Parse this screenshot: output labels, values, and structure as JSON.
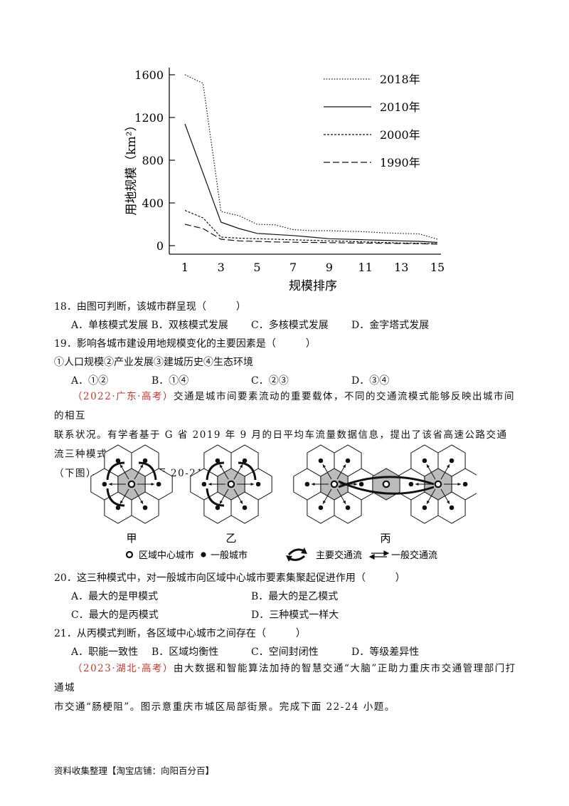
{
  "chart_data": {
    "type": "line",
    "ylabel": "用地规模（km²）",
    "xlabel": "规模排序",
    "x_ticks": [
      1,
      3,
      5,
      7,
      9,
      11,
      13,
      15
    ],
    "y_ticks": [
      0,
      400,
      800,
      1200,
      1600
    ],
    "ylim": [
      0,
      1600
    ],
    "xlim": [
      1,
      15
    ],
    "legend_position": "top-right",
    "series": [
      {
        "name": "2018年",
        "style": "dotted",
        "x": [
          1,
          2,
          3,
          4,
          5,
          6,
          7,
          8,
          9,
          10,
          11,
          12,
          13,
          14,
          15
        ],
        "y": [
          1600,
          1520,
          320,
          280,
          200,
          195,
          150,
          140,
          140,
          135,
          130,
          120,
          115,
          110,
          60
        ]
      },
      {
        "name": "2010年",
        "style": "solid",
        "x": [
          1,
          2,
          3,
          4,
          5,
          6,
          7,
          8,
          9,
          10,
          11,
          12,
          13,
          14,
          15
        ],
        "y": [
          1140,
          680,
          220,
          160,
          115,
          105,
          95,
          80,
          65,
          60,
          55,
          50,
          45,
          40,
          30
        ]
      },
      {
        "name": "2000年",
        "style": "short-dash",
        "x": [
          1,
          2,
          3,
          4,
          5,
          6,
          7,
          8,
          9,
          10,
          11,
          12,
          13,
          14,
          15
        ],
        "y": [
          330,
          260,
          80,
          70,
          65,
          60,
          55,
          50,
          45,
          40,
          35,
          30,
          25,
          22,
          18
        ]
      },
      {
        "name": "1990年",
        "style": "long-dash",
        "x": [
          1,
          2,
          3,
          4,
          5,
          6,
          7,
          8,
          9,
          10,
          11,
          12,
          13,
          14,
          15
        ],
        "y": [
          200,
          160,
          60,
          45,
          40,
          35,
          32,
          30,
          28,
          26,
          24,
          22,
          20,
          18,
          15
        ]
      }
    ]
  },
  "q18": {
    "stem": "18．由图可判断，该城市群呈现（　　　）",
    "options": [
      "A．单核模式发展 B．双核模式发展",
      "C．多核模式发展",
      "D．金字塔式发展"
    ]
  },
  "q19": {
    "stem": "19．影响各城市建设用地规模变化的主要因素是（　　　）",
    "line2": "①人口规模②产业发展③建城历史④生态环境",
    "options": [
      "A．①②",
      "B．①④",
      "C．②③",
      "D．③④"
    ]
  },
  "passage1": {
    "source": "（2022·广东·高考）",
    "text1": "交通是城市间要素流动的重要载体，不同的交通流模式能够反映出城市间的相互",
    "text2": "联系状况。有学者基于 G 省 2019 年 9 月的日平均车流量数据信息，提出了该省高速公路交通流三种模式",
    "text3": "（下图）。据此完成下面 20-21 小题。"
  },
  "diagram": {
    "labels": [
      "甲",
      "乙",
      "丙"
    ],
    "legend": {
      "center_city": "区域中心城市",
      "general_city": "一般城市",
      "main_flow": "主要交通流",
      "general_flow": "一般交通流"
    }
  },
  "q20": {
    "stem": "20．这三种模式中，对一般城市向区域中心城市要素集聚起促进作用（　　　）",
    "options": [
      "A．最大的是甲模式",
      "B．最大的是乙模式",
      "C．最大的是丙模式",
      "D．三种模式一样大"
    ]
  },
  "q21": {
    "stem": "21．从丙模式判断，各区域中心城市之间存在（　　　）",
    "options": [
      "A．职能一致性",
      "B．区域均衡性",
      "C．空间封闭性",
      "D．等级差异性"
    ]
  },
  "passage2": {
    "source": "（2023·湖北·高考）",
    "text1": "由大数据和智能算法加持的智慧交通“大脑”正助力重庆市交通管理部门打通城",
    "text2": "市交通“肠梗阻”。图示意重庆市城区局部街景。完成下面 22-24 小题。"
  },
  "footer": "资料收集整理【淘宝店铺：向阳百分百】"
}
